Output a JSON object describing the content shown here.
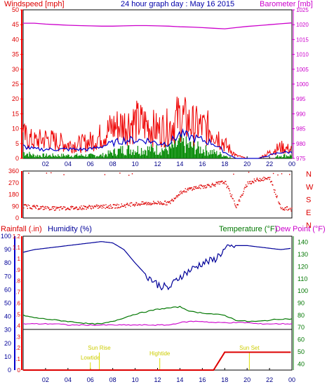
{
  "header": {
    "windspeed_label": "Windspeed [mph]",
    "title": "24 hour graph day : May 16 2015",
    "barometer_label": "Barometer [mb]"
  },
  "colors": {
    "wind": "#ee0000",
    "gust": "#ff0000",
    "avg": "#0000cc",
    "green": "#008800",
    "baro": "#cc00cc",
    "dir": "#dd0000",
    "humidity": "#000099",
    "temp": "#007700",
    "dew": "#cc00cc",
    "rain": "#dd0000",
    "astro": "#dddd00"
  },
  "chart_data": [
    {
      "type": "line",
      "name": "wind-barometer",
      "x_ticks": [
        "02",
        "04",
        "06",
        "08",
        "10",
        "12",
        "14",
        "16",
        "18",
        "20",
        "22",
        "00"
      ],
      "y_left_ticks": [
        "0",
        "5",
        "10",
        "15",
        "20",
        "25",
        "30",
        "35",
        "40",
        "45",
        "50"
      ],
      "y_left_range": [
        0,
        50
      ],
      "y_right_ticks": [
        "975",
        "980",
        "985",
        "990",
        "995",
        "1000",
        "1005",
        "1010",
        "1015",
        "1020",
        "1025"
      ],
      "y_right_range": [
        975,
        1025
      ],
      "xlabel": "",
      "hours": [
        0,
        1,
        2,
        3,
        4,
        5,
        6,
        7,
        8,
        9,
        10,
        11,
        12,
        13,
        14,
        15,
        16,
        17,
        18,
        19,
        20,
        21,
        22,
        23,
        24
      ],
      "series": [
        {
          "name": "Windspeed",
          "values": [
            8,
            6,
            7,
            6,
            5,
            5,
            6,
            8,
            11,
            12,
            13,
            12,
            10,
            11,
            15,
            12,
            11,
            10,
            5,
            1,
            0,
            0,
            2,
            4,
            3
          ]
        },
        {
          "name": "",
          "values": [
            4,
            3,
            3,
            3,
            3,
            3,
            3,
            4,
            5,
            6,
            6,
            6,
            5,
            5,
            8,
            7,
            6,
            5,
            2,
            0,
            0,
            0,
            1,
            2,
            2
          ]
        },
        {
          "name": "",
          "values": [
            2,
            1,
            1,
            1,
            1,
            1,
            1,
            1,
            2,
            3,
            3,
            3,
            3,
            3,
            5,
            4,
            3,
            2,
            1,
            0,
            0,
            0,
            0,
            1,
            1
          ]
        },
        {
          "name": "Barometer",
          "values": [
            1020.5,
            1020.5,
            1020.2,
            1020.0,
            1019.8,
            1019.7,
            1019.6,
            1019.5,
            1019.5,
            1019.6,
            1019.7,
            1019.7,
            1019.6,
            1019.5,
            1019.3,
            1019.2,
            1019.0,
            1018.8,
            1018.6,
            1019.0,
            1019.4,
            1019.7,
            1020.0,
            1020.3,
            1020.6
          ]
        }
      ]
    },
    {
      "type": "scatter",
      "name": "wind-direction",
      "y_left_ticks": [
        "360",
        "270",
        "180",
        "90",
        "0"
      ],
      "y_range": [
        0,
        360
      ],
      "y_right_ticks": [
        "N",
        "W",
        "S",
        "E",
        "N"
      ],
      "hours": [
        0,
        1,
        2,
        3,
        4,
        5,
        6,
        7,
        8,
        9,
        10,
        11,
        12,
        13,
        14,
        15,
        16,
        17,
        18,
        19,
        20,
        21,
        22,
        23,
        24
      ],
      "series": [
        {
          "name": "Wind Direction",
          "values": [
            95,
            85,
            80,
            75,
            80,
            82,
            88,
            90,
            92,
            100,
            110,
            115,
            120,
            118,
            200,
            230,
            245,
            260,
            280,
            90,
            270,
            300,
            305,
            80,
            70
          ]
        }
      ]
    },
    {
      "type": "line",
      "name": "humidity-temperature",
      "x_ticks": [
        "02",
        "04",
        "06",
        "08",
        "10",
        "12",
        "14",
        "16",
        "18",
        "20",
        "22",
        "00"
      ],
      "rainfall_label": "Rainfall (.in)",
      "humidity_label": "Humidity (%)",
      "temperature_label": "Temperature (°F)",
      "dewpoint_label": "Dew Point (°F)",
      "y_outer_ticks": [
        "0",
        "10",
        "20",
        "30",
        "40",
        "50",
        "60",
        "70",
        "80",
        "90",
        "100"
      ],
      "y_outer_range": [
        0,
        100
      ],
      "y_inner_ticks": [
        "0",
        ".1",
        ".2",
        ".3",
        ".4",
        ".5",
        ".6",
        ".7",
        ".8",
        ".9",
        "1",
        "1.1",
        "1.2"
      ],
      "y_inner_range": [
        0,
        1.2
      ],
      "y_right_ticks": [
        "40",
        "50",
        "60",
        "70",
        "80",
        "90",
        "100",
        "110",
        "120",
        "130",
        "140"
      ],
      "y_right_range": [
        35,
        145
      ],
      "hours": [
        0,
        1,
        2,
        3,
        4,
        5,
        6,
        7,
        8,
        9,
        10,
        11,
        12,
        13,
        14,
        15,
        16,
        17,
        18,
        19,
        20,
        21,
        22,
        23,
        24
      ],
      "series": [
        {
          "name": "Humidity",
          "values": [
            88,
            90,
            91,
            92,
            93,
            94,
            95,
            96,
            95,
            90,
            80,
            71,
            64,
            61,
            70,
            75,
            80,
            82,
            90,
            93,
            93,
            92,
            91,
            90,
            91
          ]
        },
        {
          "name": "Temperature",
          "values": [
            80,
            78,
            77,
            76,
            75,
            74,
            73,
            73,
            75,
            78,
            81,
            83,
            85,
            86,
            87,
            83,
            82,
            81,
            80,
            76,
            75,
            75,
            76,
            77,
            77
          ]
        },
        {
          "name": "Dew Point",
          "values": [
            73,
            73,
            73,
            73,
            72,
            72,
            72,
            72,
            72,
            72,
            72,
            72,
            72,
            72,
            74,
            75,
            75,
            74,
            74,
            74,
            74,
            73,
            73,
            73,
            73
          ]
        },
        {
          "name": "Rainfall",
          "values": [
            0,
            0,
            0,
            0,
            0,
            0,
            0,
            0,
            0,
            0,
            0,
            0,
            0,
            0,
            0,
            0,
            0,
            0,
            0.16,
            0.16,
            0.16,
            0.16,
            0.16,
            0.16,
            0.16
          ]
        }
      ],
      "annotations": [
        {
          "label": "Lowtide",
          "hour": 6.0
        },
        {
          "label": "Sun Rise",
          "hour": 6.8
        },
        {
          "label": "Hightide",
          "hour": 12.2
        },
        {
          "label": "Sun Set",
          "hour": 20.2
        }
      ]
    }
  ]
}
